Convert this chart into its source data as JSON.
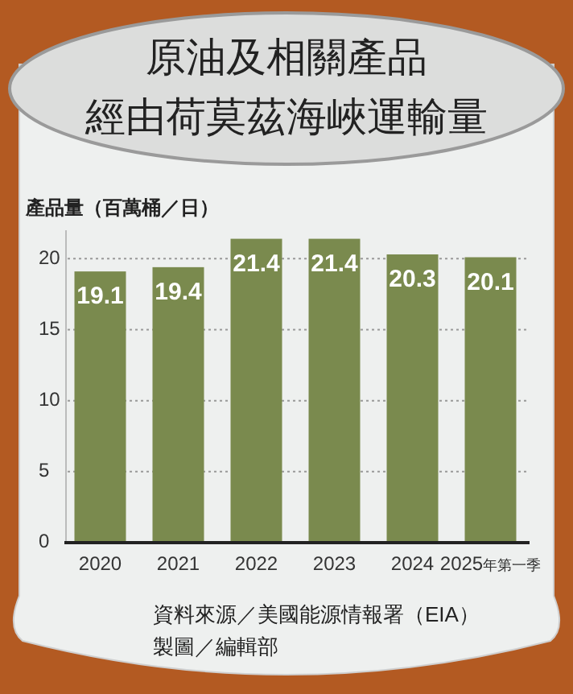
{
  "chart_data": {
    "type": "bar",
    "title": "原油及相關產品",
    "subtitle": "經由荷莫茲海峽運輸量",
    "ylabel": "產品量（百萬桶／日）",
    "categories": [
      "2020",
      "2021",
      "2022",
      "2023",
      "2024",
      "2025年第一季"
    ],
    "values": [
      19.1,
      19.4,
      21.4,
      21.4,
      20.3,
      20.1
    ],
    "color": "#7a8a4e",
    "ylim": [
      0,
      22
    ],
    "yticks": [
      0,
      5,
      10,
      15,
      20
    ],
    "grid": "y",
    "data_labels": true,
    "annotations": [
      "資料來源／美國能源情報署（EIA）",
      "製圖／編輯部"
    ]
  }
}
